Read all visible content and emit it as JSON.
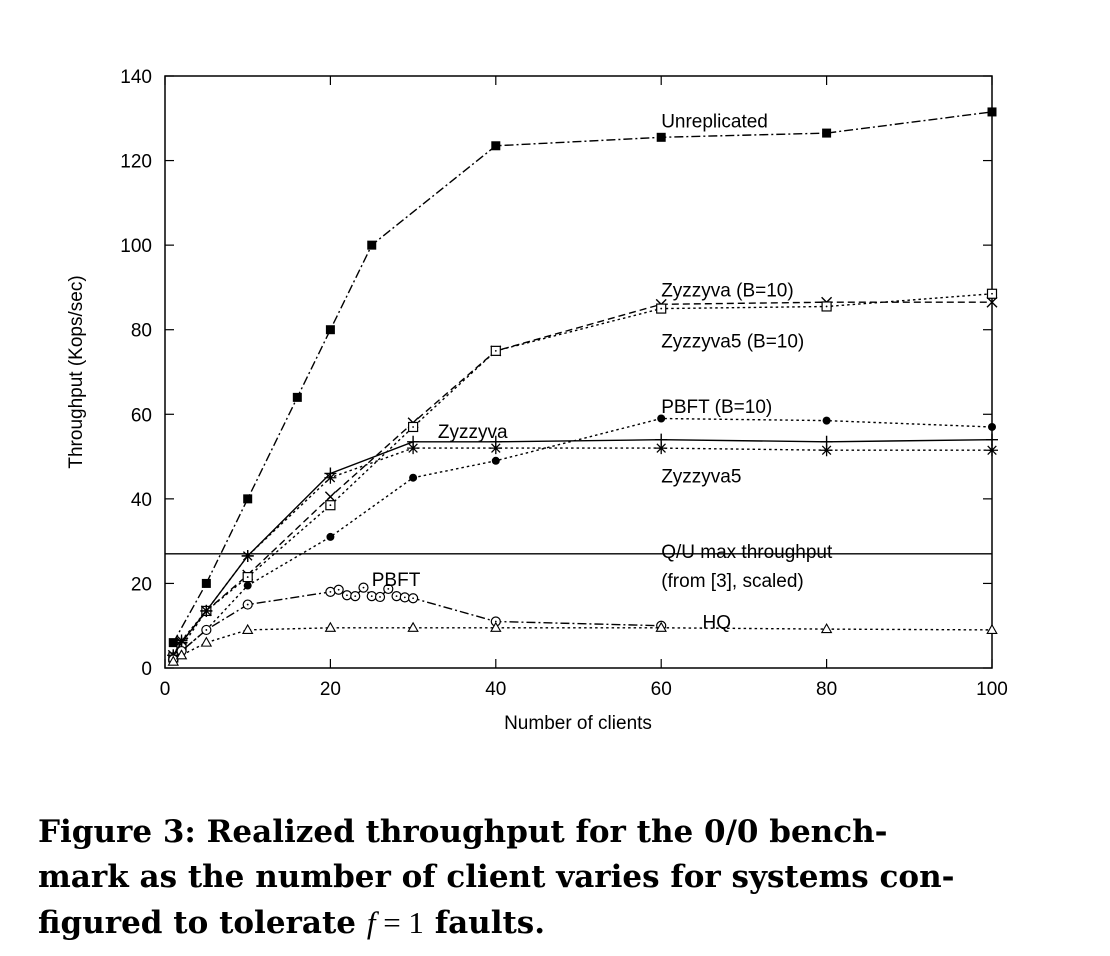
{
  "chart_data": {
    "type": "line",
    "xlabel": "Number of clients",
    "ylabel": "Throughput (Kops/sec)",
    "xlim": [
      0,
      100
    ],
    "ylim": [
      0,
      140
    ],
    "xticks": [
      0,
      20,
      40,
      60,
      80,
      100
    ],
    "yticks": [
      0,
      20,
      40,
      60,
      80,
      100,
      120,
      140
    ],
    "grid": false,
    "legend": "inline labels",
    "series": [
      {
        "name": "Unreplicated",
        "marker": "filled-square",
        "line": "dash-dot",
        "x": [
          1,
          5,
          10,
          16,
          20,
          25,
          40,
          60,
          80,
          100
        ],
        "y": [
          6,
          20,
          40,
          64,
          80,
          100,
          123.5,
          125.5,
          126.5,
          131.5
        ],
        "label": {
          "text": "Unreplicated",
          "x": 60,
          "y": 129.5
        }
      },
      {
        "name": "Zyzzyva (B=10)",
        "marker": "x",
        "line": "dashed",
        "x": [
          1,
          2,
          5,
          10,
          20,
          30,
          40,
          60,
          80,
          100
        ],
        "y": [
          3,
          6,
          13.5,
          22,
          40.5,
          58,
          75,
          86,
          86.5,
          86.5
        ],
        "label": {
          "text": "Zyzzyva (B=10)",
          "x": 60,
          "y": 89.5
        }
      },
      {
        "name": "Zyzzyva5 (B=10)",
        "marker": "open-square",
        "line": "dotted",
        "x": [
          1,
          2,
          5,
          10,
          20,
          30,
          40,
          60,
          80,
          100
        ],
        "y": [
          2.5,
          5,
          13.5,
          21.5,
          38.5,
          57,
          75,
          85,
          85.5,
          88.5
        ],
        "label": {
          "text": "Zyzzyva5 (B=10)",
          "x": 60,
          "y": 77.5
        }
      },
      {
        "name": "PBFT (B=10)",
        "marker": "filled-circle",
        "line": "dotted",
        "x": [
          1,
          2,
          5,
          10,
          20,
          30,
          40,
          60,
          80,
          100
        ],
        "y": [
          2,
          4,
          9,
          19.5,
          31,
          45,
          49,
          59,
          58.5,
          57
        ],
        "label": {
          "text": "PBFT (B=10)",
          "x": 60,
          "y": 62
        }
      },
      {
        "name": "Zyzzyva",
        "marker": "plus",
        "line": "solid",
        "x": [
          1,
          2,
          5,
          10,
          20,
          30,
          40,
          60,
          80,
          100
        ],
        "y": [
          3,
          6,
          13.5,
          26.5,
          46,
          53.5,
          53.5,
          54,
          53.5,
          54
        ],
        "label": {
          "text": "Zyzzyva",
          "x": 33,
          "y": 56
        }
      },
      {
        "name": "Zyzzyva5",
        "marker": "asterisk",
        "line": "dotted",
        "x": [
          1,
          2,
          5,
          10,
          20,
          30,
          40,
          60,
          80,
          100
        ],
        "y": [
          3,
          6.5,
          13.5,
          26.5,
          45,
          52,
          52,
          52,
          51.5,
          51.5
        ],
        "label": {
          "text": "Zyzzyva5",
          "x": 60,
          "y": 45.5
        }
      },
      {
        "name": "PBFT",
        "marker": "open-circle",
        "line": "dash-dot",
        "x": [
          1,
          2,
          5,
          10,
          20,
          21,
          22,
          23,
          24,
          25,
          26,
          27,
          28,
          29,
          30,
          40,
          60
        ],
        "y": [
          2,
          4,
          9,
          15,
          18,
          18.5,
          17.2,
          17,
          19,
          17,
          16.8,
          18.7,
          17,
          16.7,
          16.5,
          11,
          10
        ],
        "label": {
          "text": "PBFT",
          "x": 25,
          "y": 21
        }
      },
      {
        "name": "HQ",
        "marker": "open-triangle",
        "line": "dotted",
        "x": [
          1,
          2,
          5,
          10,
          20,
          30,
          40,
          60,
          80,
          100
        ],
        "y": [
          1.5,
          3,
          6,
          9,
          9.5,
          9.5,
          9.5,
          9.5,
          9.2,
          9
        ],
        "label": {
          "text": "HQ",
          "x": 65,
          "y": 11
        }
      }
    ],
    "reference_line": {
      "y": 27,
      "label_lines": [
        "Q/U max throughput",
        "(from [3], scaled)"
      ],
      "label_x": 60,
      "label_y": 30
    }
  },
  "caption": {
    "prefix": "Figure 3:  Realized throughput for the 0/0 bench-",
    "line2": "mark as the number of client varies for systems con-",
    "line3_before": "figured to tolerate ",
    "math_var": "f",
    "math_rest": " = 1",
    "line3_after": " faults."
  }
}
